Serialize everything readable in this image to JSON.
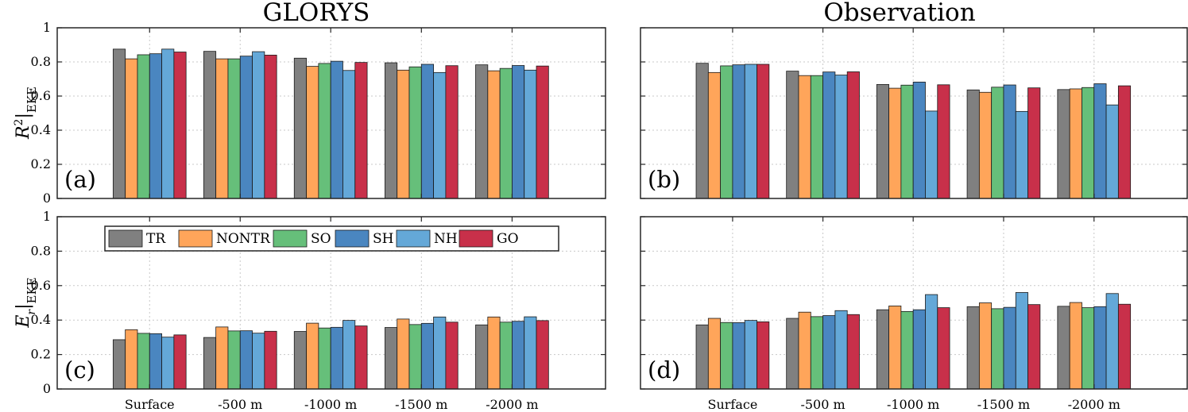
{
  "figure": {
    "columns": [
      "GLORYS",
      "Observation"
    ],
    "ylabels": {
      "top": "R²|EKE",
      "bottom": "Er|EKE"
    },
    "panel_tags": [
      "(a)",
      "(b)",
      "(c)",
      "(d)"
    ],
    "yticks": [
      "0",
      "0.2",
      "0.4",
      "0.6",
      "0.8",
      "1"
    ],
    "legend": {
      "placement": "top-left inside panel (c)",
      "entries": [
        {
          "name": "TR",
          "color": "#808080"
        },
        {
          "name": "NONTR",
          "color": "#ffa55a"
        },
        {
          "name": "SO",
          "color": "#66bf7a"
        },
        {
          "name": "SH",
          "color": "#4a86c0"
        },
        {
          "name": "NH",
          "color": "#64a8d8"
        },
        {
          "name": "GO",
          "color": "#c8304a"
        }
      ]
    }
  },
  "chart_data": [
    {
      "type": "bar",
      "panel": "(a)",
      "title": "GLORYS",
      "ylabel": "R²|EKE",
      "categories": [
        "Surface",
        "-500 m",
        "-1000 m",
        "-1500 m",
        "-2000 m"
      ],
      "ylim": [
        0,
        1
      ],
      "grid": true,
      "series": [
        {
          "name": "TR",
          "values": [
            0.875,
            0.862,
            0.822,
            0.795,
            0.783
          ]
        },
        {
          "name": "NONTR",
          "values": [
            0.818,
            0.818,
            0.774,
            0.752,
            0.748
          ]
        },
        {
          "name": "SO",
          "values": [
            0.842,
            0.818,
            0.791,
            0.771,
            0.762
          ]
        },
        {
          "name": "SH",
          "values": [
            0.848,
            0.834,
            0.804,
            0.786,
            0.779
          ]
        },
        {
          "name": "NH",
          "values": [
            0.875,
            0.86,
            0.75,
            0.738,
            0.752
          ]
        },
        {
          "name": "GO",
          "values": [
            0.858,
            0.84,
            0.797,
            0.778,
            0.776
          ]
        }
      ]
    },
    {
      "type": "bar",
      "panel": "(b)",
      "title": "Observation",
      "ylabel": "R²|EKE",
      "categories": [
        "Surface",
        "-500 m",
        "-1000 m",
        "-1500 m",
        "-2000 m"
      ],
      "ylim": [
        0,
        1
      ],
      "grid": true,
      "series": [
        {
          "name": "TR",
          "values": [
            0.792,
            0.746,
            0.668,
            0.636,
            0.638
          ]
        },
        {
          "name": "NONTR",
          "values": [
            0.738,
            0.72,
            0.646,
            0.622,
            0.642
          ]
        },
        {
          "name": "SO",
          "values": [
            0.777,
            0.72,
            0.664,
            0.652,
            0.65
          ]
        },
        {
          "name": "SH",
          "values": [
            0.783,
            0.741,
            0.682,
            0.665,
            0.672
          ]
        },
        {
          "name": "NH",
          "values": [
            0.786,
            0.723,
            0.512,
            0.51,
            0.548
          ]
        },
        {
          "name": "GO",
          "values": [
            0.786,
            0.742,
            0.666,
            0.648,
            0.66
          ]
        }
      ]
    },
    {
      "type": "bar",
      "panel": "(c)",
      "ylabel": "Er|EKE",
      "categories": [
        "Surface",
        "-500 m",
        "-1000 m",
        "-1500 m",
        "-2000 m"
      ],
      "ylim": [
        0,
        1
      ],
      "grid": true,
      "series": [
        {
          "name": "TR",
          "values": [
            0.286,
            0.299,
            0.334,
            0.357,
            0.372
          ]
        },
        {
          "name": "NONTR",
          "values": [
            0.344,
            0.36,
            0.382,
            0.406,
            0.418
          ]
        },
        {
          "name": "SO",
          "values": [
            0.323,
            0.337,
            0.354,
            0.374,
            0.388
          ]
        },
        {
          "name": "SH",
          "values": [
            0.321,
            0.338,
            0.358,
            0.381,
            0.393
          ]
        },
        {
          "name": "NH",
          "values": [
            0.301,
            0.324,
            0.398,
            0.418,
            0.419
          ]
        },
        {
          "name": "GO",
          "values": [
            0.314,
            0.335,
            0.366,
            0.388,
            0.397
          ]
        }
      ]
    },
    {
      "type": "bar",
      "panel": "(d)",
      "ylabel": "Er|EKE",
      "categories": [
        "Surface",
        "-500 m",
        "-1000 m",
        "-1500 m",
        "-2000 m"
      ],
      "ylim": [
        0,
        1
      ],
      "grid": true,
      "series": [
        {
          "name": "TR",
          "values": [
            0.372,
            0.41,
            0.46,
            0.478,
            0.48
          ]
        },
        {
          "name": "NONTR",
          "values": [
            0.41,
            0.446,
            0.482,
            0.5,
            0.502
          ]
        },
        {
          "name": "SO",
          "values": [
            0.386,
            0.42,
            0.45,
            0.466,
            0.472
          ]
        },
        {
          "name": "SH",
          "values": [
            0.385,
            0.426,
            0.46,
            0.474,
            0.478
          ]
        },
        {
          "name": "NH",
          "values": [
            0.398,
            0.455,
            0.548,
            0.56,
            0.554
          ]
        },
        {
          "name": "GO",
          "values": [
            0.39,
            0.432,
            0.472,
            0.49,
            0.492
          ]
        }
      ]
    }
  ]
}
